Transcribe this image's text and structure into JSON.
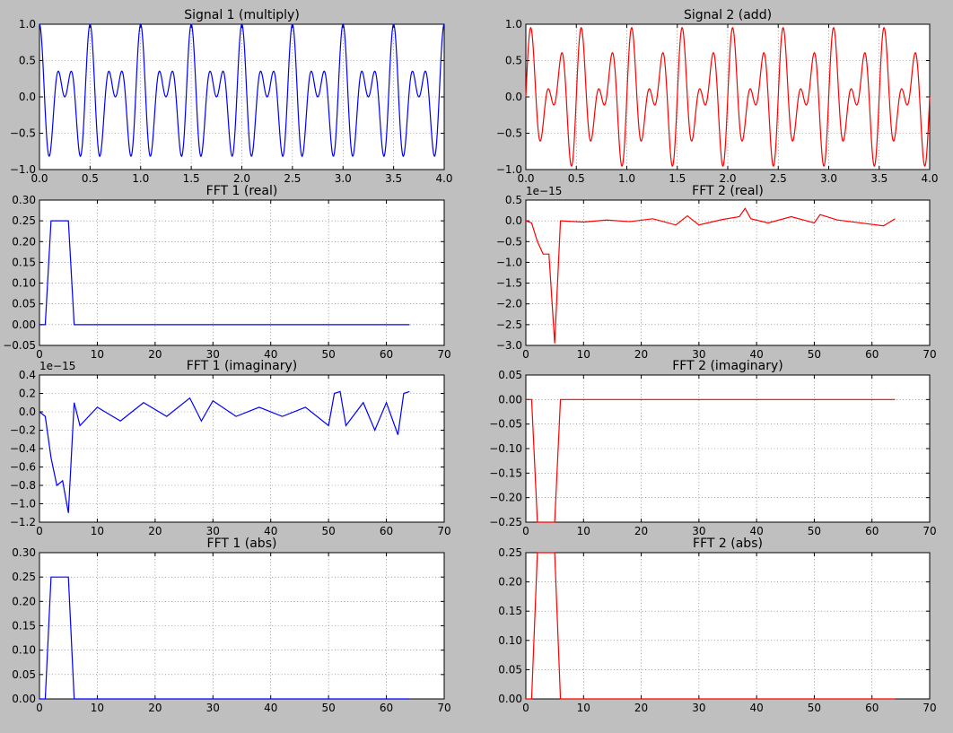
{
  "colors": {
    "series_1": "#0000ff",
    "series_2": "#ff0000",
    "background": "#bfbfbf"
  },
  "chart_data": [
    {
      "type": "line",
      "title": "Signal 1 (multiply)",
      "xlim": [
        0,
        4
      ],
      "ylim": [
        -1,
        1
      ],
      "x_ticks": [
        "0.0",
        "0.5",
        "1.0",
        "1.5",
        "2.0",
        "2.5",
        "3.0",
        "3.5",
        "4.0"
      ],
      "y_ticks": [
        "1.0",
        "0.5",
        "0.0",
        "−0.5",
        "−1.0"
      ],
      "offset_label": "",
      "grid": true,
      "series": [
        {
          "color": "#0000ff",
          "function": "cos(2πx)·cos(10πx)",
          "x_range": [
            0,
            4
          ]
        }
      ]
    },
    {
      "type": "line",
      "title": "Signal 2 (add)",
      "xlim": [
        0,
        4
      ],
      "ylim": [
        -1,
        1
      ],
      "x_ticks": [
        "0.0",
        "0.5",
        "1.0",
        "1.5",
        "2.0",
        "2.5",
        "3.0",
        "3.5",
        "4.0"
      ],
      "y_ticks": [
        "1.0",
        "0.5",
        "0.0",
        "−0.5",
        "−1.0"
      ],
      "offset_label": "",
      "grid": true,
      "series": [
        {
          "color": "#ff0000",
          "function": "0.5·sin(8πx)+0.5·sin(12πx)",
          "x_range": [
            0,
            4
          ]
        }
      ]
    },
    {
      "type": "line",
      "title": "FFT 1 (real)",
      "xlim": [
        0,
        70
      ],
      "ylim": [
        -0.05,
        0.3
      ],
      "x_ticks": [
        "0",
        "10",
        "20",
        "30",
        "40",
        "50",
        "60",
        "70"
      ],
      "y_ticks": [
        "0.30",
        "0.25",
        "0.20",
        "0.15",
        "0.10",
        "0.05",
        "0.00",
        "−0.05"
      ],
      "offset_label": "",
      "grid": true,
      "series": [
        {
          "color": "#0000ff",
          "x": [
            0,
            1,
            2,
            3,
            4,
            5,
            6,
            64
          ],
          "y": [
            0,
            0,
            0.25,
            0.25,
            0.25,
            0.25,
            0,
            0
          ]
        }
      ]
    },
    {
      "type": "line",
      "title": "FFT 2 (real)",
      "xlim": [
        0,
        70
      ],
      "ylim": [
        -3.0,
        0.5
      ],
      "x_ticks": [
        "0",
        "10",
        "20",
        "30",
        "40",
        "50",
        "60",
        "70"
      ],
      "y_ticks": [
        "0.5",
        "0.0",
        "−0.5",
        "−1.0",
        "−1.5",
        "−2.0",
        "−2.5",
        "−3.0"
      ],
      "offset_label": "1e−15",
      "grid": true,
      "series": [
        {
          "color": "#ff0000",
          "x": [
            0,
            1,
            2,
            3,
            4,
            5,
            6,
            10,
            14,
            18,
            22,
            26,
            28,
            30,
            34,
            37,
            38,
            39,
            42,
            46,
            50,
            51,
            54,
            58,
            62,
            64
          ],
          "y": [
            0,
            -0.05,
            -0.5,
            -0.8,
            -0.8,
            -2.95,
            0,
            -0.03,
            0.02,
            -0.02,
            0.05,
            -0.1,
            0.12,
            -0.1,
            0.03,
            0.1,
            0.3,
            0.05,
            -0.05,
            0.1,
            -0.05,
            0.15,
            0.02,
            -0.05,
            -0.12,
            0.05
          ]
        }
      ]
    },
    {
      "type": "line",
      "title": "FFT 1 (imaginary)",
      "xlim": [
        0,
        70
      ],
      "ylim": [
        -1.2,
        0.4
      ],
      "x_ticks": [
        "0",
        "10",
        "20",
        "30",
        "40",
        "50",
        "60",
        "70"
      ],
      "y_ticks": [
        "0.4",
        "0.2",
        "0.0",
        "−0.2",
        "−0.4",
        "−0.6",
        "−0.8",
        "−1.0",
        "−1.2"
      ],
      "offset_label": "1e−15",
      "grid": true,
      "series": [
        {
          "color": "#0000ff",
          "x": [
            0,
            1,
            2,
            3,
            4,
            5,
            6,
            7,
            10,
            14,
            18,
            22,
            26,
            28,
            30,
            34,
            38,
            42,
            46,
            50,
            51,
            52,
            53,
            56,
            58,
            60,
            62,
            63,
            64
          ],
          "y": [
            0,
            -0.05,
            -0.5,
            -0.8,
            -0.75,
            -1.1,
            0.1,
            -0.15,
            0.05,
            -0.1,
            0.1,
            -0.05,
            0.15,
            -0.1,
            0.12,
            -0.05,
            0.05,
            -0.05,
            0.05,
            -0.15,
            0.2,
            0.22,
            -0.15,
            0.1,
            -0.2,
            0.1,
            -0.25,
            0.2,
            0.22
          ]
        }
      ]
    },
    {
      "type": "line",
      "title": "FFT 2 (imaginary)",
      "xlim": [
        0,
        70
      ],
      "ylim": [
        -0.25,
        0.05
      ],
      "x_ticks": [
        "0",
        "10",
        "20",
        "30",
        "40",
        "50",
        "60",
        "70"
      ],
      "y_ticks": [
        "0.05",
        "0.00",
        "−0.05",
        "−0.10",
        "−0.15",
        "−0.20",
        "−0.25"
      ],
      "offset_label": "",
      "grid": true,
      "series": [
        {
          "color": "#ff0000",
          "x": [
            0,
            1,
            2,
            3,
            4,
            5,
            6,
            64
          ],
          "y": [
            0,
            0,
            -0.25,
            -0.25,
            -0.25,
            -0.25,
            0,
            0
          ]
        }
      ]
    },
    {
      "type": "line",
      "title": "FFT 1 (abs)",
      "xlim": [
        0,
        70
      ],
      "ylim": [
        0,
        0.3
      ],
      "x_ticks": [
        "0",
        "10",
        "20",
        "30",
        "40",
        "50",
        "60",
        "70"
      ],
      "y_ticks": [
        "0.30",
        "0.25",
        "0.20",
        "0.15",
        "0.10",
        "0.05",
        "0.00"
      ],
      "offset_label": "",
      "grid": true,
      "series": [
        {
          "color": "#0000ff",
          "x": [
            0,
            1,
            2,
            3,
            4,
            5,
            6,
            64
          ],
          "y": [
            0,
            0,
            0.25,
            0.25,
            0.25,
            0.25,
            0,
            0
          ]
        }
      ]
    },
    {
      "type": "line",
      "title": "FFT 2 (abs)",
      "xlim": [
        0,
        70
      ],
      "ylim": [
        0,
        0.25
      ],
      "x_ticks": [
        "0",
        "10",
        "20",
        "30",
        "40",
        "50",
        "60",
        "70"
      ],
      "y_ticks": [
        "0.25",
        "0.20",
        "0.15",
        "0.10",
        "0.05",
        "0.00"
      ],
      "offset_label": "",
      "grid": true,
      "series": [
        {
          "color": "#ff0000",
          "x": [
            0,
            1,
            2,
            3,
            4,
            5,
            6,
            64
          ],
          "y": [
            0,
            0,
            0.25,
            0.25,
            0.25,
            0.25,
            0,
            0
          ]
        }
      ]
    }
  ]
}
